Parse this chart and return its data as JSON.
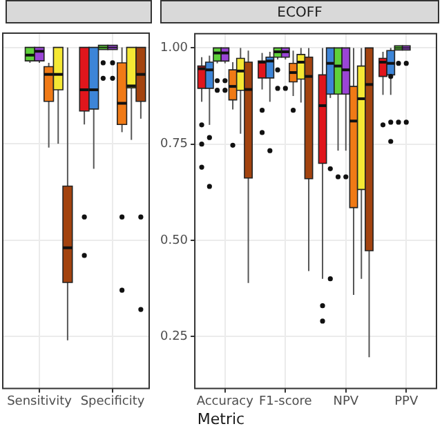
{
  "chart_data": [
    {
      "type": "box",
      "categories": [
        "Sensitivity",
        "Specificity"
      ],
      "ylim": [
        0.115,
        1.037
      ],
      "yticks": [
        0.25,
        0.5,
        0.75,
        1.0
      ],
      "tick_labels": "x",
      "grid": true,
      "legend": false,
      "series": [
        {
          "color": "#e0161c",
          "boxes": [
            null,
            {
              "low": 0.8,
              "q1": 0.835,
              "median": 0.89,
              "q3": 1.0,
              "high": 1.0,
              "outliers": [
                0.56,
                0.46
              ]
            }
          ]
        },
        {
          "color": "#3d85d8",
          "boxes": [
            null,
            {
              "low": 0.685,
              "q1": 0.84,
              "median": 0.89,
              "q3": 1.0,
              "high": 1.0
            }
          ]
        },
        {
          "color": "#5fd13a",
          "boxes": [
            {
              "low": 0.96,
              "q1": 0.965,
              "median": 0.98,
              "q3": 1.0,
              "high": 1.0
            },
            {
              "low": 1.0,
              "q1": 1.0,
              "median": 1.0,
              "q3": 1.0,
              "high": 1.0,
              "outliers": [
                0.96,
                0.92
              ]
            }
          ]
        },
        {
          "color": "#9a45d6",
          "boxes": [
            {
              "low": 0.96,
              "q1": 0.965,
              "median": 0.99,
              "q3": 1.0,
              "high": 1.0
            },
            {
              "low": 1.0,
              "q1": 1.0,
              "median": 1.0,
              "q3": 1.0,
              "high": 1.0,
              "outliers": [
                0.96,
                0.92
              ]
            }
          ]
        },
        {
          "color": "#f07a16",
          "boxes": [
            {
              "low": 0.74,
              "q1": 0.86,
              "median": 0.93,
              "q3": 0.95,
              "high": 0.96
            },
            {
              "low": 0.78,
              "q1": 0.8,
              "median": 0.855,
              "q3": 0.96,
              "high": 1.0,
              "outliers": [
                0.56,
                0.37
              ]
            }
          ]
        },
        {
          "color": "#f5e834",
          "boxes": [
            {
              "low": 0.75,
              "q1": 0.89,
              "median": 0.93,
              "q3": 1.0,
              "high": 1.0
            },
            {
              "low": 0.76,
              "q1": 0.895,
              "median": 0.9,
              "q3": 1.0,
              "high": 1.0
            }
          ]
        },
        {
          "color": "#a3430f",
          "boxes": [
            {
              "low": 0.24,
              "q1": 0.39,
              "median": 0.48,
              "q3": 0.64,
              "high": 1.0
            },
            {
              "low": 0.815,
              "q1": 0.86,
              "median": 0.93,
              "q3": 1.0,
              "high": 1.0,
              "outliers": [
                0.56,
                0.32
              ]
            }
          ]
        }
      ]
    },
    {
      "type": "box",
      "title": "ECOFF",
      "xlabel": "Metric",
      "categories": [
        "Accuracy",
        "F1-score",
        "NPV",
        "PPV"
      ],
      "ylim": [
        0.115,
        1.037
      ],
      "yticks": [
        {
          "value": 0.25,
          "label": "0.25"
        },
        {
          "value": 0.5,
          "label": "0.50"
        },
        {
          "value": 0.75,
          "label": "0.75"
        },
        {
          "value": 1.0,
          "label": "1.00"
        }
      ],
      "grid": true,
      "legend": false,
      "series": [
        {
          "color": "#e0161c",
          "boxes": [
            {
              "low": 0.86,
              "q1": 0.895,
              "median": 0.946,
              "q3": 0.953,
              "high": 0.976,
              "outliers": [
                0.8,
                0.75,
                0.69
              ]
            },
            {
              "low": 0.892,
              "q1": 0.922,
              "median": 0.963,
              "q3": 0.966,
              "high": 0.987,
              "outliers": [
                0.838,
                0.78
              ]
            },
            {
              "low": 0.4,
              "q1": 0.7,
              "median": 0.85,
              "q3": 0.93,
              "high": 1.0,
              "outliers": [
                0.33,
                0.29
              ]
            },
            {
              "low": 0.878,
              "q1": 0.926,
              "median": 0.963,
              "q3": 0.973,
              "high": 0.99,
              "outliers": [
                0.8
              ]
            }
          ]
        },
        {
          "color": "#3d85d8",
          "boxes": [
            {
              "low": 0.8,
              "q1": 0.895,
              "median": 0.943,
              "q3": 0.963,
              "high": 0.98,
              "outliers": [
                0.767,
                0.64
              ]
            },
            {
              "low": 0.86,
              "q1": 0.922,
              "median": 0.966,
              "q3": 0.976,
              "high": 0.99,
              "outliers": [
                0.733
              ]
            },
            {
              "low": 0.87,
              "q1": 0.88,
              "median": 0.96,
              "q3": 1.0,
              "high": 1.0,
              "outliers": [
                0.686,
                0.4
              ]
            },
            {
              "low": 0.878,
              "q1": 0.93,
              "median": 0.96,
              "q3": 0.993,
              "high": 1.0,
              "outliers": [
                0.926,
                0.807,
                0.757
              ]
            }
          ]
        },
        {
          "color": "#5fd13a",
          "boxes": [
            {
              "low": 0.96,
              "q1": 0.966,
              "median": 0.987,
              "q3": 1.0,
              "high": 1.0,
              "outliers": [
                0.915,
                0.89
              ]
            },
            {
              "low": 0.97,
              "q1": 0.976,
              "median": 0.99,
              "q3": 1.0,
              "high": 1.0,
              "outliers": [
                0.943,
                0.895
              ]
            },
            {
              "low": 0.733,
              "q1": 0.88,
              "median": 0.953,
              "q3": 1.0,
              "high": 1.0,
              "outliers": [
                0.665
              ]
            },
            {
              "low": 1.0,
              "q1": 1.0,
              "median": 1.0,
              "q3": 1.0,
              "high": 1.0,
              "outliers": [
                0.96,
                0.807
              ]
            }
          ]
        },
        {
          "color": "#9a45d6",
          "boxes": [
            {
              "low": 0.96,
              "q1": 0.966,
              "median": 0.987,
              "q3": 1.0,
              "high": 1.0,
              "outliers": [
                0.915,
                0.89
              ]
            },
            {
              "low": 0.97,
              "q1": 0.976,
              "median": 0.99,
              "q3": 1.0,
              "high": 1.0,
              "outliers": [
                0.895
              ]
            },
            {
              "low": 0.733,
              "q1": 0.88,
              "median": 0.943,
              "q3": 1.0,
              "high": 1.0,
              "outliers": [
                0.665
              ]
            },
            {
              "low": 1.0,
              "q1": 1.0,
              "median": 1.0,
              "q3": 1.0,
              "high": 1.0,
              "outliers": [
                0.96,
                0.807
              ]
            }
          ]
        },
        {
          "color": "#f07a16",
          "boxes": [
            {
              "low": 0.84,
              "q1": 0.865,
              "median": 0.9,
              "q3": 0.943,
              "high": 0.963,
              "outliers": [
                0.747
              ]
            },
            {
              "low": 0.875,
              "q1": 0.912,
              "median": 0.936,
              "q3": 0.96,
              "high": 0.993,
              "outliers": [
                0.838
              ]
            },
            {
              "low": 0.358,
              "q1": 0.585,
              "median": 0.81,
              "q3": 0.9,
              "high": 1.0
            },
            null
          ]
        },
        {
          "color": "#f5e834",
          "boxes": [
            {
              "low": 0.777,
              "q1": 0.89,
              "median": 0.94,
              "q3": 0.973,
              "high": 1.0
            },
            {
              "low": 0.858,
              "q1": 0.919,
              "median": 0.963,
              "q3": 0.983,
              "high": 1.0
            },
            {
              "low": 0.4,
              "q1": 0.632,
              "median": 0.868,
              "q3": 0.953,
              "high": 1.0
            },
            null
          ]
        },
        {
          "color": "#a3430f",
          "boxes": [
            {
              "low": 0.389,
              "q1": 0.662,
              "median": 0.892,
              "q3": 0.963,
              "high": 0.993
            },
            {
              "low": 0.42,
              "q1": 0.66,
              "median": 0.926,
              "q3": 0.976,
              "high": 1.0
            },
            {
              "low": 0.196,
              "q1": 0.473,
              "median": 0.905,
              "q3": 1.0,
              "high": 1.0
            },
            null
          ]
        }
      ]
    }
  ]
}
